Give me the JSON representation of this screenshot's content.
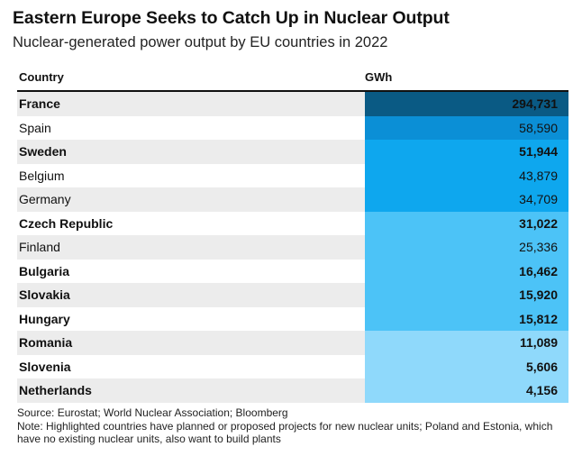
{
  "title": "Eastern Europe Seeks to Catch Up in Nuclear Output",
  "subtitle": "Nuclear-generated power output by EU countries in 2022",
  "chart_data": {
    "type": "table",
    "title": "Eastern Europe Seeks to Catch Up in Nuclear Output",
    "subtitle": "Nuclear-generated power output by EU countries in 2022",
    "columns": [
      "Country",
      "GWh"
    ],
    "rows": [
      {
        "country": "France",
        "value": 294731,
        "display": "294,731",
        "highlighted": true,
        "color": "#0a5a84"
      },
      {
        "country": "Spain",
        "value": 58590,
        "display": "58,590",
        "highlighted": false,
        "color": "#0b8fd6"
      },
      {
        "country": "Sweden",
        "value": 51944,
        "display": "51,944",
        "highlighted": true,
        "color": "#0ea7ee"
      },
      {
        "country": "Belgium",
        "value": 43879,
        "display": "43,879",
        "highlighted": false,
        "color": "#0ea7ee"
      },
      {
        "country": "Germany",
        "value": 34709,
        "display": "34,709",
        "highlighted": false,
        "color": "#0ea7ee"
      },
      {
        "country": "Czech Republic",
        "value": 31022,
        "display": "31,022",
        "highlighted": true,
        "color": "#4cc3f7"
      },
      {
        "country": "Finland",
        "value": 25336,
        "display": "25,336",
        "highlighted": false,
        "color": "#4cc3f7"
      },
      {
        "country": "Bulgaria",
        "value": 16462,
        "display": "16,462",
        "highlighted": true,
        "color": "#4cc3f7"
      },
      {
        "country": "Slovakia",
        "value": 15920,
        "display": "15,920",
        "highlighted": true,
        "color": "#4cc3f7"
      },
      {
        "country": "Hungary",
        "value": 15812,
        "display": "15,812",
        "highlighted": true,
        "color": "#4cc3f7"
      },
      {
        "country": "Romania",
        "value": 11089,
        "display": "11,089",
        "highlighted": true,
        "color": "#8fd9fb"
      },
      {
        "country": "Slovenia",
        "value": 5606,
        "display": "5,606",
        "highlighted": true,
        "color": "#8fd9fb"
      },
      {
        "country": "Netherlands",
        "value": 4156,
        "display": "4,156",
        "highlighted": true,
        "color": "#8fd9fb"
      }
    ]
  },
  "footer": {
    "source": "Source: Eurostat; World Nuclear Association; Bloomberg",
    "note": "Note: Highlighted countries have planned or proposed projects for new nuclear units; Poland and Estonia, which have no existing nuclear units, also want to build plants"
  }
}
